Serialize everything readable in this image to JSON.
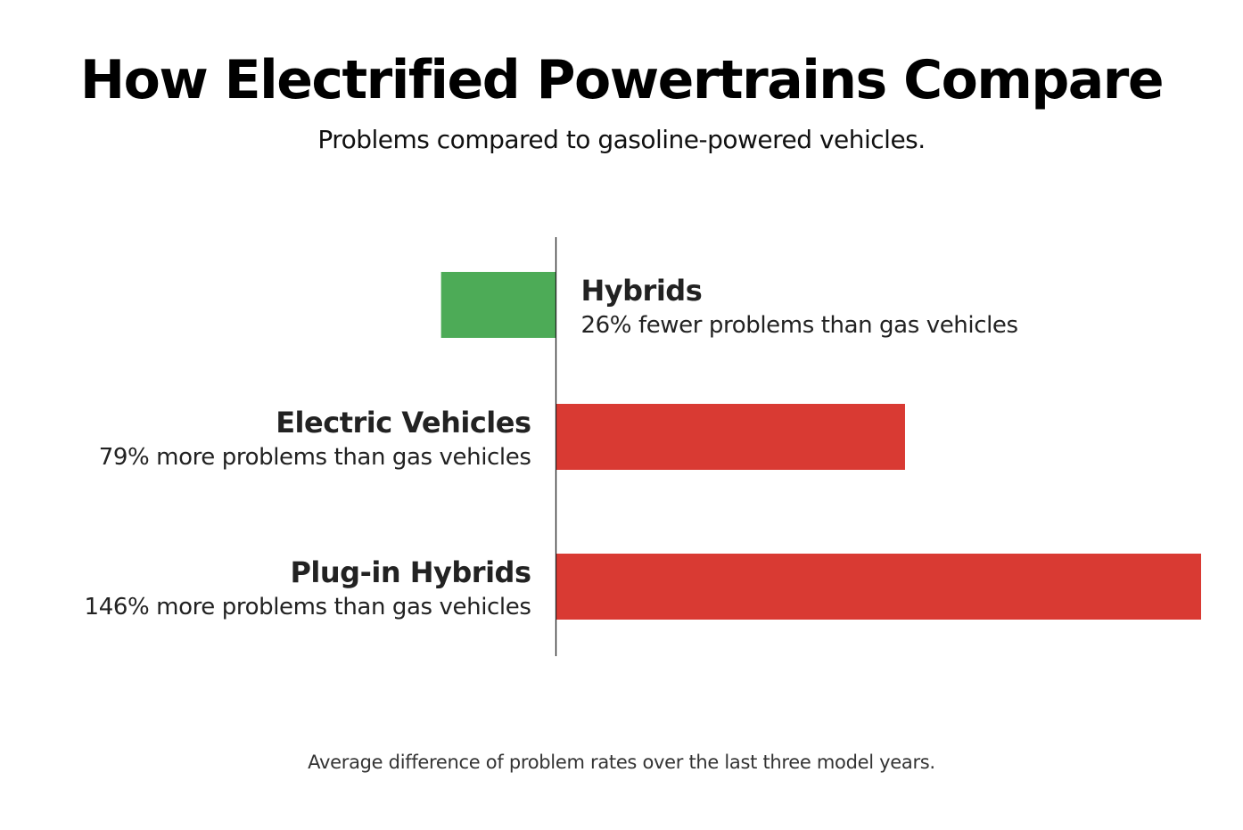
{
  "title": "How Electrified Powertrains Compare",
  "subtitle": "Problems compared to gasoline-powered vehicles.",
  "footnote": "Average difference of problem rates over the last three model years.",
  "colors": {
    "negative": "#4dab57",
    "positive": "#d93a33",
    "axis": "#222222"
  },
  "chart_data": {
    "type": "bar",
    "orientation": "horizontal",
    "baseline": 0,
    "unit": "%",
    "grid": false,
    "categories": [
      "Hybrids",
      "Electric Vehicles",
      "Plug-in Hybrids"
    ],
    "values": [
      -26,
      79,
      146
    ],
    "labels": [
      "26% fewer problems than gas vehicles",
      "79% more problems than gas vehicles",
      "146% more problems than gas vehicles"
    ],
    "title": "How Electrified Powertrains Compare",
    "subtitle": "Problems compared to gasoline-powered vehicles."
  }
}
